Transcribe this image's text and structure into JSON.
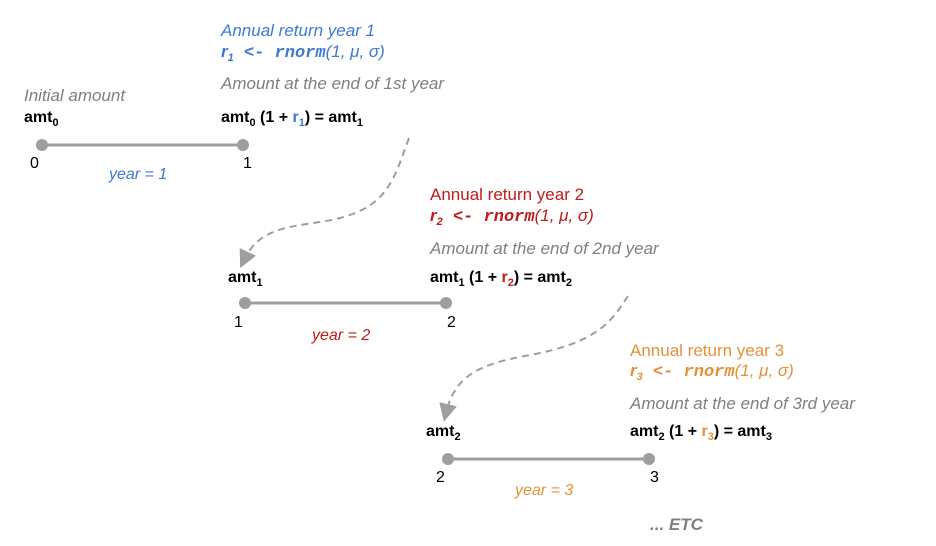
{
  "segments": [
    {
      "return_title": "Annual return year 1",
      "r_sub": "1",
      "arrow": " <- ",
      "fn": "rnorm",
      "args": "(1, μ, σ)",
      "end_caption": "Amount at the end of 1st year",
      "start_amt": "amt",
      "start_sub": "0",
      "formula_pre": "amt",
      "formula_pre_sub": "0",
      "formula_open": " (1 + ",
      "formula_r": "r",
      "formula_r_sub": "1",
      "formula_close": ") = amt",
      "formula_end_sub": "1",
      "tick_start": "0",
      "tick_end": "1",
      "year_label": "year = 1",
      "color": "#3d78d6"
    },
    {
      "return_title": "Annual return year 2",
      "r_sub": "2",
      "arrow": " <- ",
      "fn": "rnorm",
      "args": "(1, μ, σ)",
      "end_caption": "Amount at the end of 2nd year",
      "start_amt": "amt",
      "start_sub": "1",
      "formula_pre": "amt",
      "formula_pre_sub": "1",
      "formula_open": " (1 + ",
      "formula_r": "r",
      "formula_r_sub": "2",
      "formula_close": ") = amt",
      "formula_end_sub": "2",
      "tick_start": "1",
      "tick_end": "2",
      "year_label": "year = 2",
      "color": "#c21a1a"
    },
    {
      "return_title": "Annual return year 3",
      "r_sub": "3",
      "arrow": " <- ",
      "fn": "rnorm",
      "args": "(1, μ, σ)",
      "end_caption": "Amount at the end of 3rd year",
      "start_amt": "amt",
      "start_sub": "2",
      "formula_pre": "amt",
      "formula_pre_sub": "2",
      "formula_open": " (1 + ",
      "formula_r": "r",
      "formula_r_sub": "3",
      "formula_close": ") = amt",
      "formula_end_sub": "3",
      "tick_start": "2",
      "tick_end": "3",
      "year_label": "year = 3",
      "color": "#e69138"
    }
  ],
  "initial_amount_label": "Initial amount",
  "r_letter": "r",
  "etc_label": "... ETC"
}
